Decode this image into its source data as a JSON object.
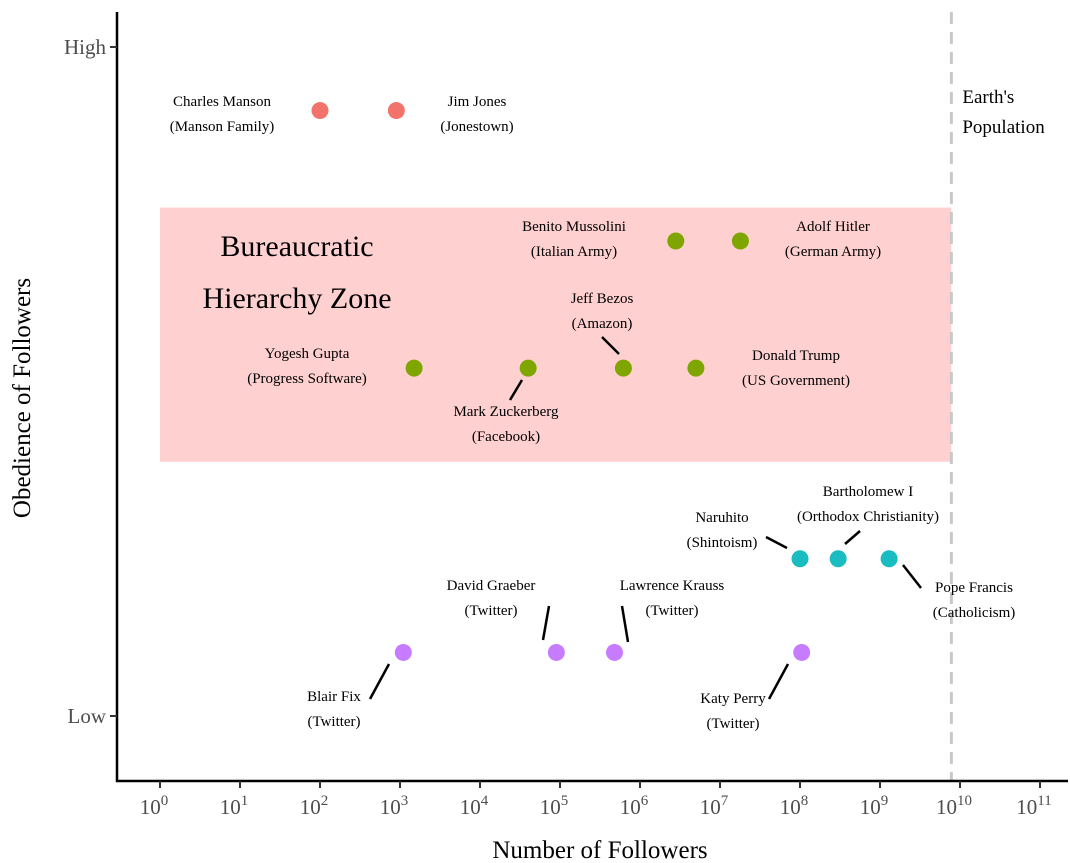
{
  "chart_data": {
    "type": "scatter",
    "title": "",
    "xlabel": "Number of Followers",
    "ylabel": "Obedience of Followers",
    "x_scale": "log10",
    "xlim": [
      1,
      100000000000
    ],
    "ylim": [
      "Low",
      "High"
    ],
    "x_tick_labels": [
      {
        "base": "10",
        "exp": "0",
        "value": 1
      },
      {
        "base": "10",
        "exp": "1",
        "value": 10
      },
      {
        "base": "10",
        "exp": "2",
        "value": 100
      },
      {
        "base": "10",
        "exp": "3",
        "value": 1000
      },
      {
        "base": "10",
        "exp": "4",
        "value": 10000
      },
      {
        "base": "10",
        "exp": "5",
        "value": 100000
      },
      {
        "base": "10",
        "exp": "6",
        "value": 1000000
      },
      {
        "base": "10",
        "exp": "7",
        "value": 10000000
      },
      {
        "base": "10",
        "exp": "8",
        "value": 100000000
      },
      {
        "base": "10",
        "exp": "9",
        "value": 1000000000
      },
      {
        "base": "10",
        "exp": "10",
        "value": 10000000000
      },
      {
        "base": "10",
        "exp": "11",
        "value": 100000000000
      }
    ],
    "y_tick_labels": [
      {
        "label": "High",
        "value": 1.0
      },
      {
        "label": "Low",
        "value": 0.0
      }
    ],
    "grid": false,
    "legend": "none",
    "zone": {
      "label_lines": [
        "Bureaucratic",
        "Hierarchy Zone"
      ],
      "x_range": [
        1,
        7800000000
      ],
      "y_range": [
        0.38,
        0.76
      ],
      "color": "#ffd0d0"
    },
    "reference_line": {
      "x": 7800000000,
      "label_lines": [
        "Earth's",
        "Population"
      ],
      "color": "#c8c8c8"
    },
    "colors": {
      "cult": "#f2736b",
      "bureaucracy": "#7fa600",
      "religion": "#19bcc0",
      "twitter": "#c77cff"
    },
    "points": [
      {
        "name": "Charles Manson",
        "org": "(Manson Family)",
        "x": 100,
        "y": 0.905,
        "group": "cult"
      },
      {
        "name": "Jim Jones",
        "org": "(Jonestown)",
        "x": 900,
        "y": 0.905,
        "group": "cult"
      },
      {
        "name": "Benito Mussolini",
        "org": "(Italian Army)",
        "x": 2800000,
        "y": 0.71,
        "group": "bureaucracy"
      },
      {
        "name": "Adolf Hitler",
        "org": "(German Army)",
        "x": 18000000,
        "y": 0.71,
        "group": "bureaucracy"
      },
      {
        "name": "Yogesh Gupta",
        "org": "(Progress Software)",
        "x": 1500,
        "y": 0.52,
        "group": "bureaucracy"
      },
      {
        "name": "Mark Zuckerberg",
        "org": "(Facebook)",
        "x": 40000,
        "y": 0.52,
        "group": "bureaucracy"
      },
      {
        "name": "Jeff Bezos",
        "org": "(Amazon)",
        "x": 620000,
        "y": 0.52,
        "group": "bureaucracy"
      },
      {
        "name": "Donald Trump",
        "org": "(US Government)",
        "x": 5000000,
        "y": 0.52,
        "group": "bureaucracy"
      },
      {
        "name": "Naruhito",
        "org": "(Shintoism)",
        "x": 100000000,
        "y": 0.235,
        "group": "religion"
      },
      {
        "name": "Bartholomew I",
        "org": "(Orthodox Christianity)",
        "x": 300000000,
        "y": 0.235,
        "group": "religion"
      },
      {
        "name": "Pope Francis",
        "org": "(Catholicism)",
        "x": 1300000000,
        "y": 0.235,
        "group": "religion"
      },
      {
        "name": "Blair Fix",
        "org": "(Twitter)",
        "x": 1100,
        "y": 0.095,
        "group": "twitter"
      },
      {
        "name": "David Graeber",
        "org": "(Twitter)",
        "x": 90000,
        "y": 0.095,
        "group": "twitter"
      },
      {
        "name": "Lawrence Krauss",
        "org": "(Twitter)",
        "x": 480000,
        "y": 0.095,
        "group": "twitter"
      },
      {
        "name": "Katy Perry",
        "org": "(Twitter)",
        "x": 105000000,
        "y": 0.095,
        "group": "twitter"
      }
    ]
  }
}
